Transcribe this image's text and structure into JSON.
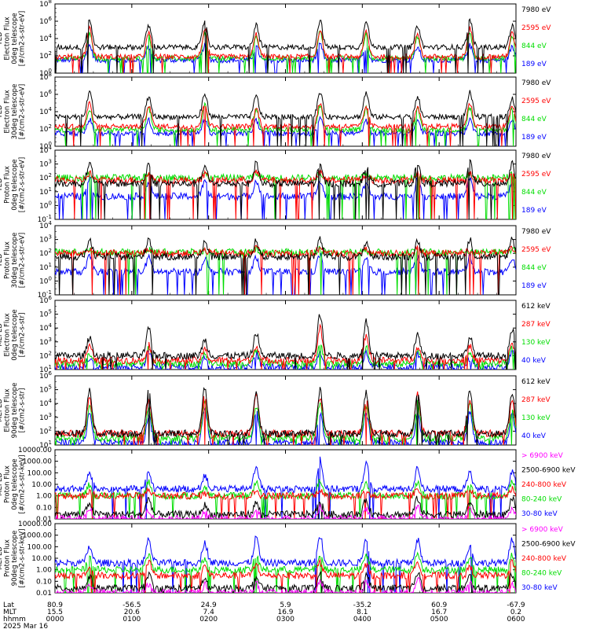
{
  "chart_data": {
    "type": "line",
    "title": "",
    "date_label": "2025 Mar 16",
    "x_axis": {
      "row_labels": [
        "Lat",
        "MLT",
        "hhmm"
      ],
      "ticks": [
        {
          "lat": "80.9",
          "mlt": "15.5",
          "hhmm": "0000"
        },
        {
          "lat": "-56.5",
          "mlt": "20.6",
          "hhmm": "0100"
        },
        {
          "lat": "24.9",
          "mlt": "7.4",
          "hhmm": "0200"
        },
        {
          "lat": "5.9",
          "mlt": "16.9",
          "hhmm": "0300"
        },
        {
          "lat": "-35.2",
          "mlt": "8.1",
          "hhmm": "0400"
        },
        {
          "lat": "60.9",
          "mlt": "16.7",
          "hhmm": "0500"
        },
        {
          "lat": "-67.9",
          "mlt": "0.2",
          "hhmm": "0600"
        }
      ],
      "range_hours": [
        0,
        6
      ]
    },
    "panels": [
      {
        "ylabel": [
          "TED",
          "Electron Flux",
          "0deg telescope",
          "[#/cm2-s-str-eV]"
        ],
        "yscale": "log",
        "ylim_exp": [
          0,
          8
        ],
        "yticks": [
          "10^0",
          "10^2",
          "10^4",
          "10^6",
          "10^8"
        ],
        "base": [
          3.0,
          1.9,
          1.7,
          1.5
        ],
        "pass_peaks": [
          [
            6.2,
            5.2,
            4.5,
            3.2
          ],
          [
            5.5,
            4.6,
            4.4,
            3.0
          ],
          [
            6.0,
            5.0,
            4.6,
            3.2
          ],
          [
            5.6,
            4.5,
            4.2,
            3.0
          ],
          [
            6.1,
            5.0,
            4.8,
            3.3
          ],
          [
            6.2,
            4.8,
            4.5,
            3.0
          ],
          [
            5.5,
            4.6,
            4.3,
            3.0
          ]
        ],
        "series": [
          {
            "name": "7980 eV",
            "color": "#000000"
          },
          {
            "name": "2595 eV",
            "color": "#ff0000"
          },
          {
            "name": "844 eV",
            "color": "#00dd00"
          },
          {
            "name": "189 eV",
            "color": "#0000ff"
          }
        ]
      },
      {
        "ylabel": [
          "TED",
          "Electron Flux",
          "30deg telescope",
          "[#/cm2-s-str-eV]"
        ],
        "yscale": "log",
        "ylim_exp": [
          0,
          8
        ],
        "yticks": [
          "10^0",
          "10^2",
          "10^4",
          "10^6",
          "10^8"
        ],
        "base": [
          3.4,
          2.3,
          1.9,
          1.5
        ],
        "pass_peaks": [
          [
            6.3,
            5.0,
            4.4,
            3.1
          ],
          [
            5.6,
            4.8,
            4.4,
            3.0
          ],
          [
            6.1,
            5.0,
            4.7,
            3.1
          ],
          [
            5.8,
            4.4,
            4.2,
            3.0
          ],
          [
            6.3,
            5.0,
            4.6,
            3.2
          ],
          [
            6.2,
            4.6,
            4.4,
            2.9
          ],
          [
            5.6,
            4.4,
            4.2,
            3.0
          ]
        ],
        "series": [
          {
            "name": "7980 eV",
            "color": "#000000"
          },
          {
            "name": "2595 eV",
            "color": "#ff0000"
          },
          {
            "name": "844 eV",
            "color": "#00dd00"
          },
          {
            "name": "189 eV",
            "color": "#0000ff"
          }
        ]
      },
      {
        "ylabel": [
          "TED",
          "Proton Flux",
          "0deg telescope",
          "[#/cm2-s-str-eV]"
        ],
        "yscale": "log",
        "ylim_exp": [
          -1,
          5
        ],
        "yticks": [
          "10^-1",
          "10^0",
          "10^1",
          "10^2",
          "10^3",
          "10^4"
        ],
        "base": [
          2.1,
          2.4,
          2.6,
          1.0
        ],
        "pass_peaks": [
          [
            4.0,
            3.0,
            2.9,
            2.5
          ],
          [
            3.8,
            3.0,
            2.9,
            2.2
          ],
          [
            3.6,
            2.9,
            2.9,
            2.3
          ],
          [
            3.9,
            3.1,
            3.0,
            2.4
          ],
          [
            3.7,
            3.0,
            2.9,
            2.3
          ],
          [
            3.6,
            2.9,
            2.9,
            2.1
          ],
          [
            3.8,
            3.0,
            3.0,
            2.4
          ]
        ],
        "series": [
          {
            "name": "7980 eV",
            "color": "#000000"
          },
          {
            "name": "2595 eV",
            "color": "#ff0000"
          },
          {
            "name": "844 eV",
            "color": "#00dd00"
          },
          {
            "name": "189 eV",
            "color": "#0000ff"
          }
        ]
      },
      {
        "ylabel": [
          "TED",
          "Proton Flux",
          "30deg telescope",
          "[#/cm2-s-str-eV]"
        ],
        "yscale": "log",
        "ylim_exp": [
          -1,
          5
        ],
        "yticks": [
          "10^-1",
          "10^0",
          "10^1",
          "10^2",
          "10^3",
          "10^4"
        ],
        "base": [
          2.3,
          2.6,
          2.7,
          1.0
        ],
        "pass_peaks": [
          [
            3.8,
            3.0,
            2.8,
            2.3
          ],
          [
            3.9,
            3.0,
            2.9,
            2.2
          ],
          [
            3.6,
            2.9,
            2.8,
            2.2
          ],
          [
            3.7,
            3.1,
            3.0,
            2.3
          ],
          [
            3.8,
            3.1,
            3.0,
            2.5
          ],
          [
            3.6,
            2.9,
            2.8,
            2.1
          ],
          [
            3.7,
            3.0,
            2.9,
            2.3
          ]
        ],
        "series": [
          {
            "name": "7980 eV",
            "color": "#000000"
          },
          {
            "name": "2595 eV",
            "color": "#ff0000"
          },
          {
            "name": "844 eV",
            "color": "#00dd00"
          },
          {
            "name": "189 eV",
            "color": "#0000ff"
          }
        ]
      },
      {
        "ylabel": [
          "MEPED",
          "Electron Flux",
          "0deg telescope",
          "[#/cm2-s-str]"
        ],
        "yscale": "log",
        "ylim_exp": [
          1,
          7
        ],
        "yticks": [
          "10^1",
          "10^2",
          "10^3",
          "10^4",
          "10^5",
          "10^6"
        ],
        "base": [
          2.2,
          1.8,
          1.5,
          1.2
        ],
        "pass_peaks": [
          [
            3.8,
            3.0,
            2.4,
            2.0
          ],
          [
            4.5,
            3.2,
            2.8,
            2.6
          ],
          [
            3.6,
            2.7,
            2.4,
            2.2
          ],
          [
            4.2,
            3.1,
            2.6,
            2.4
          ],
          [
            5.8,
            4.6,
            3.4,
            2.6
          ],
          [
            5.2,
            4.0,
            3.0,
            2.4
          ],
          [
            4.0,
            3.0,
            2.6,
            2.4
          ]
        ],
        "series": [
          {
            "name": "612 keV",
            "color": "#000000"
          },
          {
            "name": "287 keV",
            "color": "#ff0000"
          },
          {
            "name": "130 keV",
            "color": "#00dd00"
          },
          {
            "name": "40 keV",
            "color": "#0000ff"
          }
        ]
      },
      {
        "ylabel": [
          "MEPED",
          "Electron Flux",
          "90deg telescope",
          "[#/cm2-s-str]"
        ],
        "yscale": "log",
        "ylim_exp": [
          1,
          7
        ],
        "yticks": [
          "10^1",
          "10^2",
          "10^3",
          "10^4",
          "10^5",
          "10^6"
        ],
        "base": [
          2.0,
          2.0,
          1.6,
          1.2
        ],
        "pass_peaks": [
          [
            5.8,
            5.0,
            4.4,
            3.8
          ],
          [
            5.6,
            4.8,
            4.2,
            3.6
          ],
          [
            6.0,
            5.2,
            4.6,
            4.2
          ],
          [
            5.6,
            5.2,
            4.4,
            4.0
          ],
          [
            5.8,
            5.2,
            4.6,
            3.8
          ],
          [
            5.6,
            5.0,
            4.4,
            3.8
          ],
          [
            5.8,
            5.4,
            4.6,
            3.8
          ]
        ],
        "series": [
          {
            "name": "612 keV",
            "color": "#000000"
          },
          {
            "name": "287 keV",
            "color": "#ff0000"
          },
          {
            "name": "130 keV",
            "color": "#00dd00"
          },
          {
            "name": "40 keV",
            "color": "#0000ff"
          }
        ]
      },
      {
        "ylabel": [
          "MEPED",
          "Proton Flux",
          "0deg telescope",
          "[#/cm2-s-str-keV]"
        ],
        "yscale": "log",
        "ylim_exp": [
          -2,
          4
        ],
        "yticks": [
          "0.01",
          "0.10",
          "1.00",
          "10.00",
          "100.00",
          "1000.00",
          "10000.00"
        ],
        "base": [
          -2.0,
          -1.6,
          0.0,
          0.0,
          0.6
        ],
        "pass_peaks": [
          [
            -1.0,
            -0.6,
            0.4,
            1.0,
            2.0
          ],
          [
            -1.2,
            -0.2,
            0.6,
            1.2,
            2.0
          ],
          [
            -1.4,
            -0.8,
            0.2,
            0.8,
            1.8
          ],
          [
            -1.2,
            -0.6,
            0.4,
            1.2,
            2.6
          ],
          [
            -1.0,
            -0.4,
            0.6,
            1.4,
            3.2
          ],
          [
            -1.1,
            -0.3,
            0.4,
            1.2,
            2.8
          ],
          [
            -0.8,
            -0.2,
            0.5,
            1.2,
            2.4
          ]
        ],
        "series": [
          {
            "name": "> 6900 keV",
            "color": "#ff00ff"
          },
          {
            "name": "2500-6900 keV",
            "color": "#000000"
          },
          {
            "name": "240-800 keV",
            "color": "#ff0000"
          },
          {
            "name": "80-240 keV",
            "color": "#00dd00"
          },
          {
            "name": "30-80 keV",
            "color": "#0000ff"
          }
        ]
      },
      {
        "ylabel": [
          "MEPED",
          "Proton Flux",
          "90deg telescope",
          "[#/cm2-s-str-keV]"
        ],
        "yscale": "log",
        "ylim_exp": [
          -2,
          4
        ],
        "yticks": [
          "0.01",
          "0.10",
          "1.00",
          "10.00",
          "100.00",
          "1000.00",
          "10000.00"
        ],
        "base": [
          -2.0,
          -1.6,
          -0.5,
          0.0,
          0.6
        ],
        "pass_peaks": [
          [
            -1.2,
            -0.6,
            0.2,
            1.0,
            2.0
          ],
          [
            -1.2,
            -0.4,
            0.7,
            1.3,
            2.6
          ],
          [
            -1.3,
            -0.8,
            0.3,
            1.0,
            2.4
          ],
          [
            -1.2,
            -0.6,
            0.5,
            1.2,
            2.8
          ],
          [
            -1.0,
            -0.4,
            0.6,
            1.3,
            3.0
          ],
          [
            -1.1,
            -0.4,
            0.4,
            1.2,
            2.8
          ],
          [
            -0.8,
            -0.2,
            0.8,
            1.4,
            2.6
          ]
        ],
        "series": [
          {
            "name": "> 6900 keV",
            "color": "#ff00ff"
          },
          {
            "name": "2500-6900 keV",
            "color": "#000000"
          },
          {
            "name": "240-800 keV",
            "color": "#ff0000"
          },
          {
            "name": "80-240 keV",
            "color": "#00dd00"
          },
          {
            "name": "30-80 keV",
            "color": "#0000ff"
          }
        ]
      }
    ],
    "pass_times_hours": [
      0.45,
      1.22,
      1.95,
      2.62,
      3.45,
      4.05,
      4.72,
      5.4,
      5.95
    ]
  }
}
